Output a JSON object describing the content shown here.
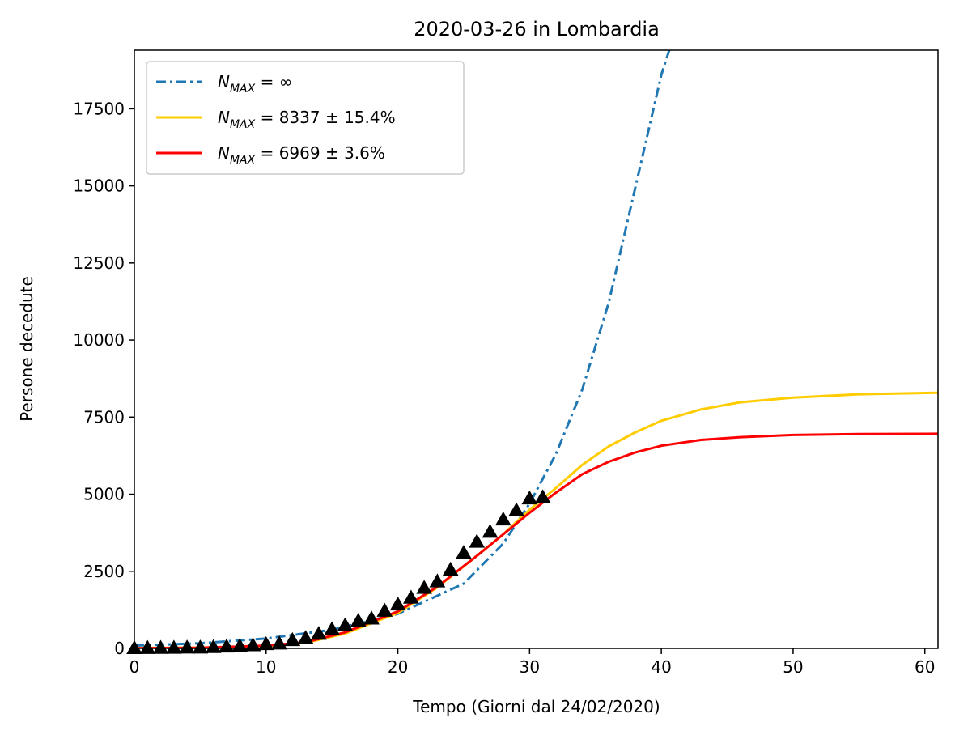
{
  "chart_data": {
    "type": "line",
    "title": "2020-03-26 in Lombardia",
    "xlabel": "Tempo (Giorni dal 24/02/2020)",
    "ylabel": "Persone decedute",
    "xlim": [
      0,
      61
    ],
    "ylim": [
      0,
      19400
    ],
    "x_ticks": [
      0,
      10,
      20,
      30,
      40,
      50,
      60
    ],
    "y_ticks": [
      0,
      2500,
      5000,
      7500,
      10000,
      12500,
      15000,
      17500
    ],
    "grid": false,
    "legend_position": "top-left",
    "series": [
      {
        "name": "N_MAX = ∞",
        "legend_base": "N",
        "legend_sub": "MAX",
        "legend_rest": " = ∞",
        "color": "#1f77b4",
        "style": "dashdot",
        "x": [
          0,
          5,
          10,
          15,
          20,
          25,
          28,
          30,
          32,
          34,
          36,
          38,
          40,
          40.6
        ],
        "y": [
          90,
          165,
          320,
          600,
          1120,
          2100,
          3400,
          4700,
          6300,
          8400,
          11200,
          14900,
          18600,
          19400
        ]
      },
      {
        "name": "N_MAX = 8337 ± 15.4%",
        "legend_base": "N",
        "legend_sub": "MAX",
        "legend_rest": " = 8337 ± 15.4%",
        "color": "#ffcc00",
        "style": "solid",
        "x": [
          0,
          5,
          10,
          13,
          16,
          20,
          23,
          26,
          28,
          30,
          32,
          34,
          36,
          38,
          40,
          43,
          46,
          50,
          55,
          61
        ],
        "y": [
          10,
          25,
          80,
          180,
          480,
          1150,
          1980,
          3000,
          3700,
          4500,
          5200,
          5950,
          6550,
          7000,
          7380,
          7750,
          7980,
          8130,
          8240,
          8290
        ]
      },
      {
        "name": "N_MAX = 6969 ± 3.6%",
        "legend_base": "N",
        "legend_sub": "MAX",
        "legend_rest": " = 6969 ± 3.6%",
        "color": "#ff0000",
        "style": "solid",
        "x": [
          0,
          5,
          10,
          13,
          16,
          20,
          23,
          26,
          28,
          30,
          32,
          34,
          36,
          38,
          40,
          43,
          46,
          50,
          55,
          61
        ],
        "y": [
          5,
          20,
          90,
          200,
          520,
          1200,
          2000,
          3000,
          3700,
          4400,
          5050,
          5650,
          6050,
          6350,
          6570,
          6760,
          6850,
          6920,
          6950,
          6960
        ]
      }
    ],
    "observed": {
      "marker": "triangle",
      "color": "#000000",
      "x": [
        0,
        1,
        2,
        3,
        4,
        5,
        6,
        7,
        8,
        9,
        10,
        11,
        12,
        13,
        14,
        15,
        16,
        17,
        18,
        19,
        20,
        21,
        22,
        23,
        24,
        25,
        26,
        27,
        28,
        29,
        30,
        31
      ],
      "y": [
        6,
        9,
        14,
        17,
        23,
        24,
        38,
        55,
        73,
        98,
        135,
        154,
        267,
        333,
        468,
        617,
        744,
        890,
        966,
        1218,
        1420,
        1640,
        1959,
        2168,
        2549,
        3095,
        3456,
        3776,
        4178,
        4474,
        4861,
        4900
      ]
    }
  }
}
